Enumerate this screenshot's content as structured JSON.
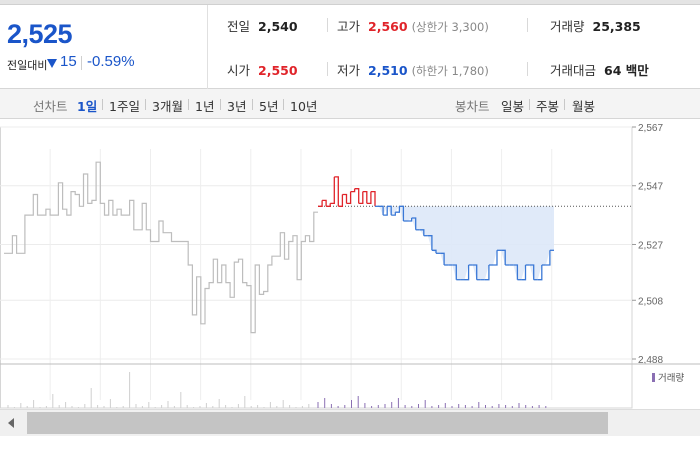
{
  "summary": {
    "current_price": "2,525",
    "change_label": "전일대비",
    "change_value": "15",
    "change_pct": "-0.59%",
    "change_direction_icon": "down-triangle-icon"
  },
  "stats": {
    "prev_close": {
      "label": "전일",
      "value": "2,540"
    },
    "open": {
      "label": "시가",
      "value": "2,550"
    },
    "high": {
      "label": "고가",
      "value": "2,560",
      "sub": "(상한가 3,300)"
    },
    "low": {
      "label": "저가",
      "value": "2,510",
      "sub": "(하한가 1,780)"
    },
    "volume": {
      "label": "거래량",
      "value": "25,385"
    },
    "amount": {
      "label": "거래대금",
      "value": "64 백만"
    }
  },
  "period_bar": {
    "line_label": "선차트",
    "line_periods": [
      "1일",
      "1주일",
      "3개월",
      "1년",
      "3년",
      "5년",
      "10년"
    ],
    "active_period": "1일",
    "candle_label": "봉차트",
    "candle_periods": [
      "일봉",
      "주봉",
      "월봉"
    ]
  },
  "chart_data": {
    "type": "line",
    "title": "",
    "xlabel": "",
    "ylabel": "",
    "y_tick_labels": [
      "2,567",
      "2,547",
      "2,527",
      "2,508",
      "2,488"
    ],
    "y_ticks": [
      2567,
      2547,
      2527,
      2508,
      2488
    ],
    "ylim": [
      2488,
      2567
    ],
    "reference_price": 2540,
    "grid": true,
    "volume_legend": "거래량",
    "colors": {
      "previous_day": "#bdbdbd",
      "above_reference": "#e0242a",
      "below_reference": "#3a78d6",
      "fill_below": "#dde8f8",
      "volume_bar": "#8a6fb3"
    },
    "previous_day_series": {
      "name": "",
      "values": [
        2524,
        2524,
        2530,
        2524,
        2524,
        2537,
        2537,
        2544,
        2537,
        2537,
        2539,
        2537,
        2537,
        2548,
        2539,
        2537,
        2545,
        2544,
        2540,
        2551,
        2541,
        2542,
        2555,
        2541,
        2537,
        2542,
        2537,
        2539,
        2537,
        2537,
        2542,
        2532,
        2532,
        2541,
        2532,
        2528,
        2528,
        2535,
        2531,
        2531,
        2528,
        2528,
        2528,
        2528,
        2520,
        2503,
        2516,
        2500,
        2512,
        2514,
        2522,
        2514,
        2520,
        2514,
        2509,
        2521,
        2522,
        2514,
        2513,
        2497,
        2520,
        2510,
        2511,
        2520,
        2523,
        2523,
        2531,
        2522,
        2528,
        2530,
        2515,
        2528,
        2530,
        2528,
        2538,
        2538
      ]
    },
    "today_series": {
      "name": "",
      "values": [
        2540,
        2542,
        2540,
        2541,
        2550,
        2540,
        2544,
        2541,
        2545,
        2546,
        2541,
        2545,
        2541,
        2545,
        2540,
        2540,
        2537,
        2540,
        2537,
        2538,
        2540,
        2535,
        2535,
        2536,
        2532,
        2532,
        2530,
        2530,
        2525,
        2524,
        2524,
        2520,
        2520,
        2520,
        2515,
        2515,
        2515,
        2520,
        2520,
        2515,
        2515,
        2515,
        2520,
        2520,
        2525,
        2525,
        2520,
        2520,
        2520,
        2515,
        2515,
        2520,
        2520,
        2515,
        2515,
        2520,
        2520,
        2525,
        2525
      ]
    }
  }
}
